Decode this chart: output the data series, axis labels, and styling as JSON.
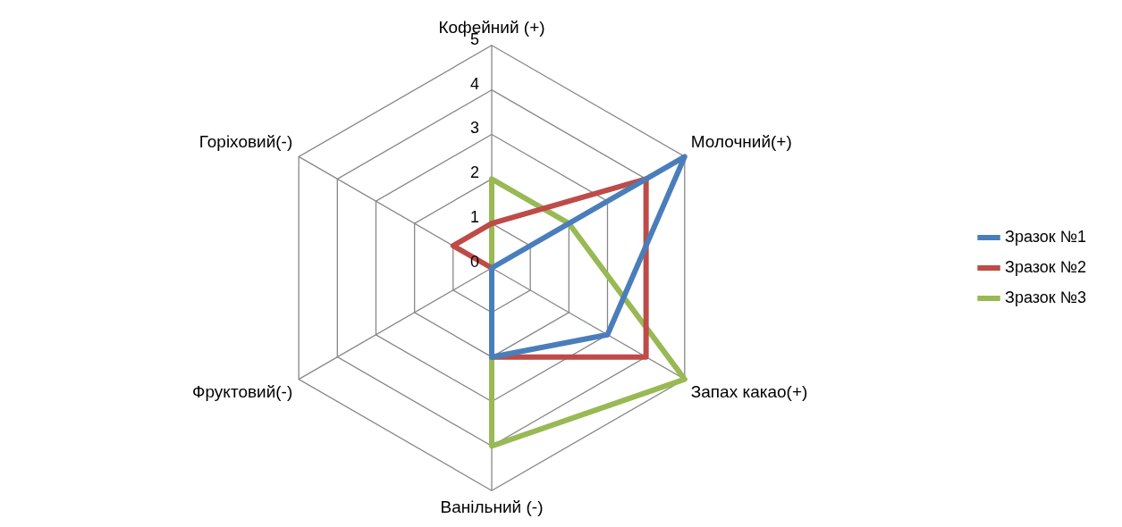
{
  "chart_data": {
    "type": "radar",
    "categories": [
      "Кофейний (+)",
      "Молочний(+)",
      "Запах какао(+)",
      "Ванільний (-)",
      "Фруктовий(-)",
      "Горіховий(-)"
    ],
    "series": [
      {
        "name": "Зразок №1",
        "color": "#4a7ebb",
        "values": [
          0,
          5,
          3,
          2,
          0,
          0
        ]
      },
      {
        "name": "Зразок №2",
        "color": "#be4b48",
        "values": [
          1,
          4,
          4,
          2,
          0,
          1
        ]
      },
      {
        "name": "Зразок №3",
        "color": "#98b954",
        "values": [
          2,
          2,
          5,
          4,
          0,
          0
        ]
      }
    ],
    "ylim": [
      0,
      5
    ],
    "yticks": [
      0,
      1,
      2,
      3,
      4,
      5
    ],
    "grid": true,
    "legend": "right"
  }
}
